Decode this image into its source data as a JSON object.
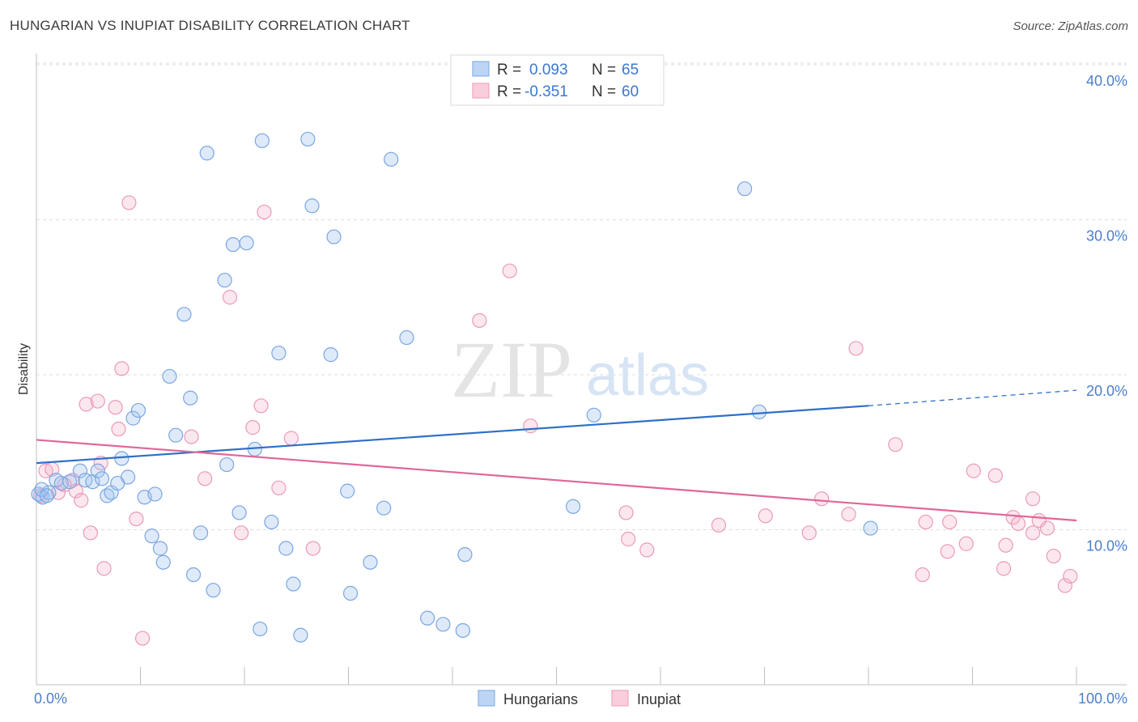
{
  "title": "HUNGARIAN VS INUPIAT DISABILITY CORRELATION CHART",
  "source": "Source: ZipAtlas.com",
  "watermark": {
    "zip": "ZIP",
    "atlas": "atlas"
  },
  "legend_box": {
    "rows": [
      {
        "r_label": "R =",
        "r_value": "0.093",
        "n_label": "N =",
        "n_value": "65",
        "color": "#9fc3ef"
      },
      {
        "r_label": "R =",
        "r_value": "-0.351",
        "n_label": "N =",
        "n_value": "60",
        "color": "#f5b3c8"
      }
    ]
  },
  "colors": {
    "blue_fill": "rgba(160,195,240,0.35)",
    "blue_stroke": "#7aa6e0",
    "blue_line": "#2f6fc8",
    "pink_fill": "rgba(245,175,200,0.30)",
    "pink_stroke": "#eb9ab7",
    "pink_line": "#e0679a",
    "axis_text": "#4a7fcc"
  },
  "chart_data": {
    "type": "scatter",
    "title": "HUNGARIAN VS INUPIAT DISABILITY CORRELATION CHART",
    "xlabel": "",
    "ylabel": "Disability",
    "xlim": [
      0,
      100
    ],
    "ylim": [
      0,
      41.3
    ],
    "x_tick_labels": [
      "0.0%",
      "100.0%"
    ],
    "y_ticks": [
      10,
      20,
      30,
      40
    ],
    "y_tick_labels": [
      "10.0%",
      "20.0%",
      "30.0%",
      "40.0%"
    ],
    "grid": true,
    "legend_position": "bottom-center",
    "series": [
      {
        "name": "Hungarians",
        "r": 0.093,
        "n": 65,
        "trend": {
          "x": [
            0,
            80
          ],
          "y": [
            14.3,
            18.0
          ],
          "dashed_to": [
            100,
            19.0
          ]
        },
        "points": [
          [
            0.6,
            12.1
          ],
          [
            1.2,
            12.4
          ],
          [
            1.9,
            13.2
          ],
          [
            2.4,
            13.0
          ],
          [
            3.2,
            13.1
          ],
          [
            4.2,
            13.8
          ],
          [
            4.7,
            13.2
          ],
          [
            5.4,
            13.1
          ],
          [
            5.9,
            13.8
          ],
          [
            6.3,
            13.3
          ],
          [
            6.8,
            12.2
          ],
          [
            7.2,
            12.4
          ],
          [
            7.8,
            13.0
          ],
          [
            8.2,
            14.6
          ],
          [
            8.8,
            13.4
          ],
          [
            9.3,
            17.2
          ],
          [
            9.8,
            17.7
          ],
          [
            10.4,
            12.1
          ],
          [
            11.1,
            9.6
          ],
          [
            11.4,
            12.3
          ],
          [
            11.9,
            8.8
          ],
          [
            12.2,
            7.9
          ],
          [
            12.8,
            19.9
          ],
          [
            13.4,
            16.1
          ],
          [
            14.2,
            23.9
          ],
          [
            14.8,
            18.5
          ],
          [
            15.1,
            7.1
          ],
          [
            15.8,
            9.8
          ],
          [
            16.4,
            34.3
          ],
          [
            17.0,
            6.1
          ],
          [
            18.1,
            26.1
          ],
          [
            18.3,
            14.2
          ],
          [
            18.9,
            28.4
          ],
          [
            19.5,
            11.1
          ],
          [
            20.2,
            28.5
          ],
          [
            21.0,
            15.2
          ],
          [
            21.5,
            3.6
          ],
          [
            21.7,
            35.1
          ],
          [
            22.6,
            10.5
          ],
          [
            23.3,
            21.4
          ],
          [
            24.0,
            8.8
          ],
          [
            24.7,
            6.5
          ],
          [
            25.4,
            3.2
          ],
          [
            26.1,
            35.2
          ],
          [
            26.5,
            30.9
          ],
          [
            28.3,
            21.3
          ],
          [
            28.6,
            28.9
          ],
          [
            29.9,
            12.5
          ],
          [
            30.2,
            5.9
          ],
          [
            32.1,
            7.9
          ],
          [
            33.4,
            11.4
          ],
          [
            34.1,
            33.9
          ],
          [
            35.6,
            22.4
          ],
          [
            37.6,
            4.3
          ],
          [
            39.1,
            3.9
          ],
          [
            41.0,
            3.5
          ],
          [
            41.2,
            8.4
          ],
          [
            51.6,
            11.5
          ],
          [
            53.6,
            17.4
          ],
          [
            68.1,
            32.0
          ],
          [
            69.5,
            17.6
          ],
          [
            80.2,
            10.1
          ],
          [
            0.2,
            12.3
          ],
          [
            0.5,
            12.6
          ],
          [
            1.0,
            12.2
          ]
        ]
      },
      {
        "name": "Inupiat",
        "r": -0.351,
        "n": 60,
        "trend": {
          "x": [
            0,
            100
          ],
          "y": [
            15.8,
            10.6
          ]
        },
        "points": [
          [
            0.4,
            12.2
          ],
          [
            0.9,
            13.8
          ],
          [
            1.5,
            13.9
          ],
          [
            2.1,
            12.4
          ],
          [
            2.7,
            12.9
          ],
          [
            3.5,
            13.2
          ],
          [
            3.8,
            12.5
          ],
          [
            4.3,
            11.9
          ],
          [
            4.8,
            18.1
          ],
          [
            5.2,
            9.8
          ],
          [
            5.9,
            18.3
          ],
          [
            6.2,
            14.3
          ],
          [
            6.5,
            7.5
          ],
          [
            7.6,
            17.9
          ],
          [
            7.9,
            16.5
          ],
          [
            8.2,
            20.4
          ],
          [
            8.9,
            31.1
          ],
          [
            9.6,
            10.7
          ],
          [
            10.2,
            3.0
          ],
          [
            14.9,
            16.0
          ],
          [
            16.2,
            13.3
          ],
          [
            18.6,
            25.0
          ],
          [
            19.7,
            9.8
          ],
          [
            20.8,
            16.6
          ],
          [
            21.6,
            18.0
          ],
          [
            21.9,
            30.5
          ],
          [
            23.3,
            12.7
          ],
          [
            24.5,
            15.9
          ],
          [
            26.6,
            8.8
          ],
          [
            42.6,
            23.5
          ],
          [
            45.5,
            26.7
          ],
          [
            47.5,
            16.7
          ],
          [
            56.7,
            11.1
          ],
          [
            56.9,
            9.4
          ],
          [
            58.7,
            8.7
          ],
          [
            65.6,
            10.3
          ],
          [
            70.1,
            10.9
          ],
          [
            74.3,
            9.8
          ],
          [
            75.5,
            12.0
          ],
          [
            78.1,
            11.0
          ],
          [
            78.8,
            21.7
          ],
          [
            82.6,
            15.5
          ],
          [
            85.5,
            10.5
          ],
          [
            85.2,
            7.1
          ],
          [
            87.6,
            8.6
          ],
          [
            87.8,
            10.5
          ],
          [
            89.4,
            9.1
          ],
          [
            90.1,
            13.8
          ],
          [
            92.2,
            13.5
          ],
          [
            93.0,
            7.5
          ],
          [
            93.9,
            10.8
          ],
          [
            94.4,
            10.4
          ],
          [
            93.2,
            9.0
          ],
          [
            95.8,
            12.0
          ],
          [
            95.8,
            9.8
          ],
          [
            96.4,
            10.6
          ],
          [
            97.2,
            10.1
          ],
          [
            97.8,
            8.3
          ],
          [
            98.9,
            6.4
          ],
          [
            99.4,
            7.0
          ]
        ]
      }
    ]
  },
  "bottom_legend": [
    {
      "label": "Hungarians",
      "color": "#9fc3ef"
    },
    {
      "label": "Inupiat",
      "color": "#f5b3c8"
    }
  ]
}
